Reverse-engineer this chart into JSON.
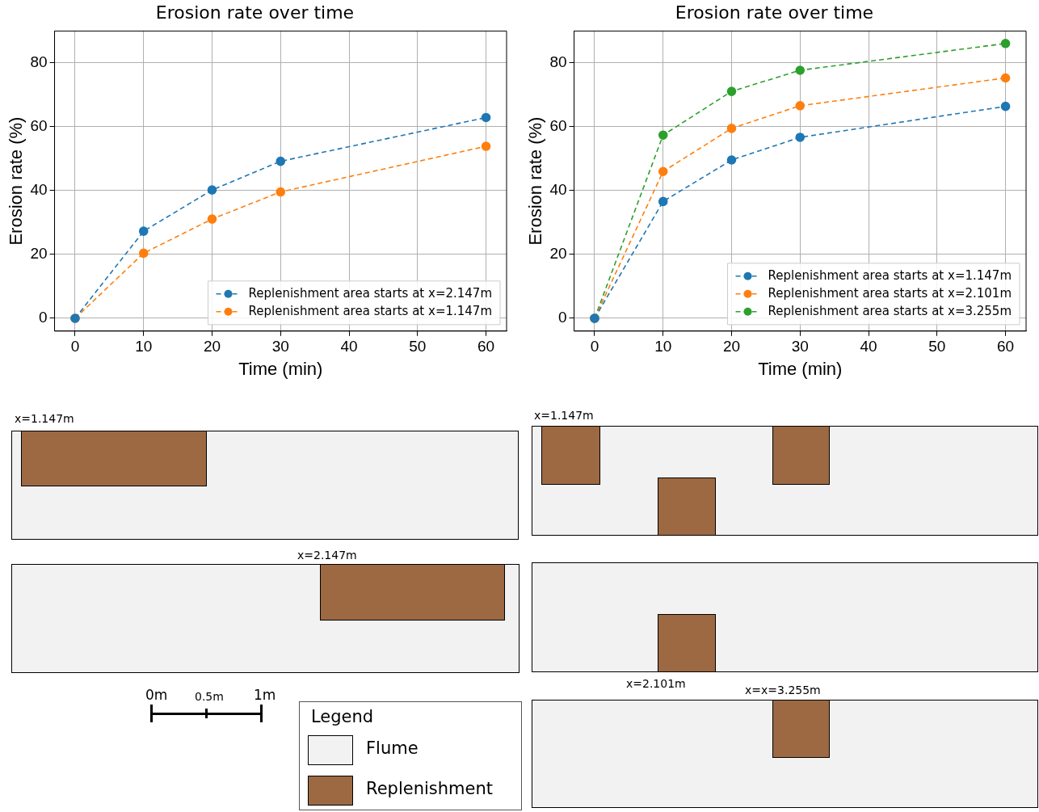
{
  "chart_data": [
    {
      "type": "line",
      "title": "Erosion rate over time",
      "xlabel": "Time (min)",
      "ylabel": "Erosion rate (%)",
      "x": [
        0,
        10,
        20,
        30,
        60
      ],
      "xlim": [
        -3,
        63
      ],
      "xticks": [
        0,
        10,
        20,
        30,
        40,
        50,
        60
      ],
      "ylim": [
        -4,
        90
      ],
      "yticks": [
        0,
        20,
        40,
        60,
        80
      ],
      "grid": true,
      "legend": "bottom right",
      "marker": "circle",
      "line_style": "dashed",
      "series": [
        {
          "name": "Replenishment area starts at x=2.147m",
          "color": "#1f77b4",
          "values": [
            0,
            27.3,
            40.2,
            49.2,
            62.9
          ]
        },
        {
          "name": "Replenishment area starts at x=1.147m",
          "color": "#ff7f0e",
          "values": [
            0,
            20.4,
            31.1,
            39.6,
            53.9
          ]
        }
      ]
    },
    {
      "type": "line",
      "title": "Erosion rate over time",
      "xlabel": "Time (min)",
      "ylabel": "Erosion rate (%)",
      "x": [
        0,
        10,
        20,
        30,
        60
      ],
      "xlim": [
        -3,
        63
      ],
      "xticks": [
        0,
        10,
        20,
        30,
        40,
        50,
        60
      ],
      "ylim": [
        -4,
        90
      ],
      "yticks": [
        0,
        20,
        40,
        60,
        80
      ],
      "grid": true,
      "legend": "bottom right",
      "marker": "circle",
      "line_style": "dashed",
      "series": [
        {
          "name": "Replenishment area starts at x=1.147m",
          "color": "#1f77b4",
          "values": [
            0,
            36.6,
            49.6,
            56.7,
            66.4
          ]
        },
        {
          "name": "Replenishment area starts at x=2.101m",
          "color": "#ff7f0e",
          "values": [
            0,
            46,
            59.5,
            66.6,
            75.3
          ]
        },
        {
          "name": "Replenishment area starts at x=3.255m",
          "color": "#2ca02c",
          "values": [
            0,
            57.4,
            71.1,
            77.7,
            86.1
          ]
        }
      ]
    },
    {
      "type": "other",
      "legend_title": "Legend",
      "categories": [
        "Flume",
        "Replenishment"
      ],
      "colors": [
        "#f2f2f2",
        "#9c6943"
      ],
      "annotations": [
        "x=1.147m",
        "x=2.147m",
        "x=1.147m",
        "x=2.101m",
        "x=x=3.255m",
        "0m",
        "0.5m",
        "1m"
      ]
    }
  ]
}
